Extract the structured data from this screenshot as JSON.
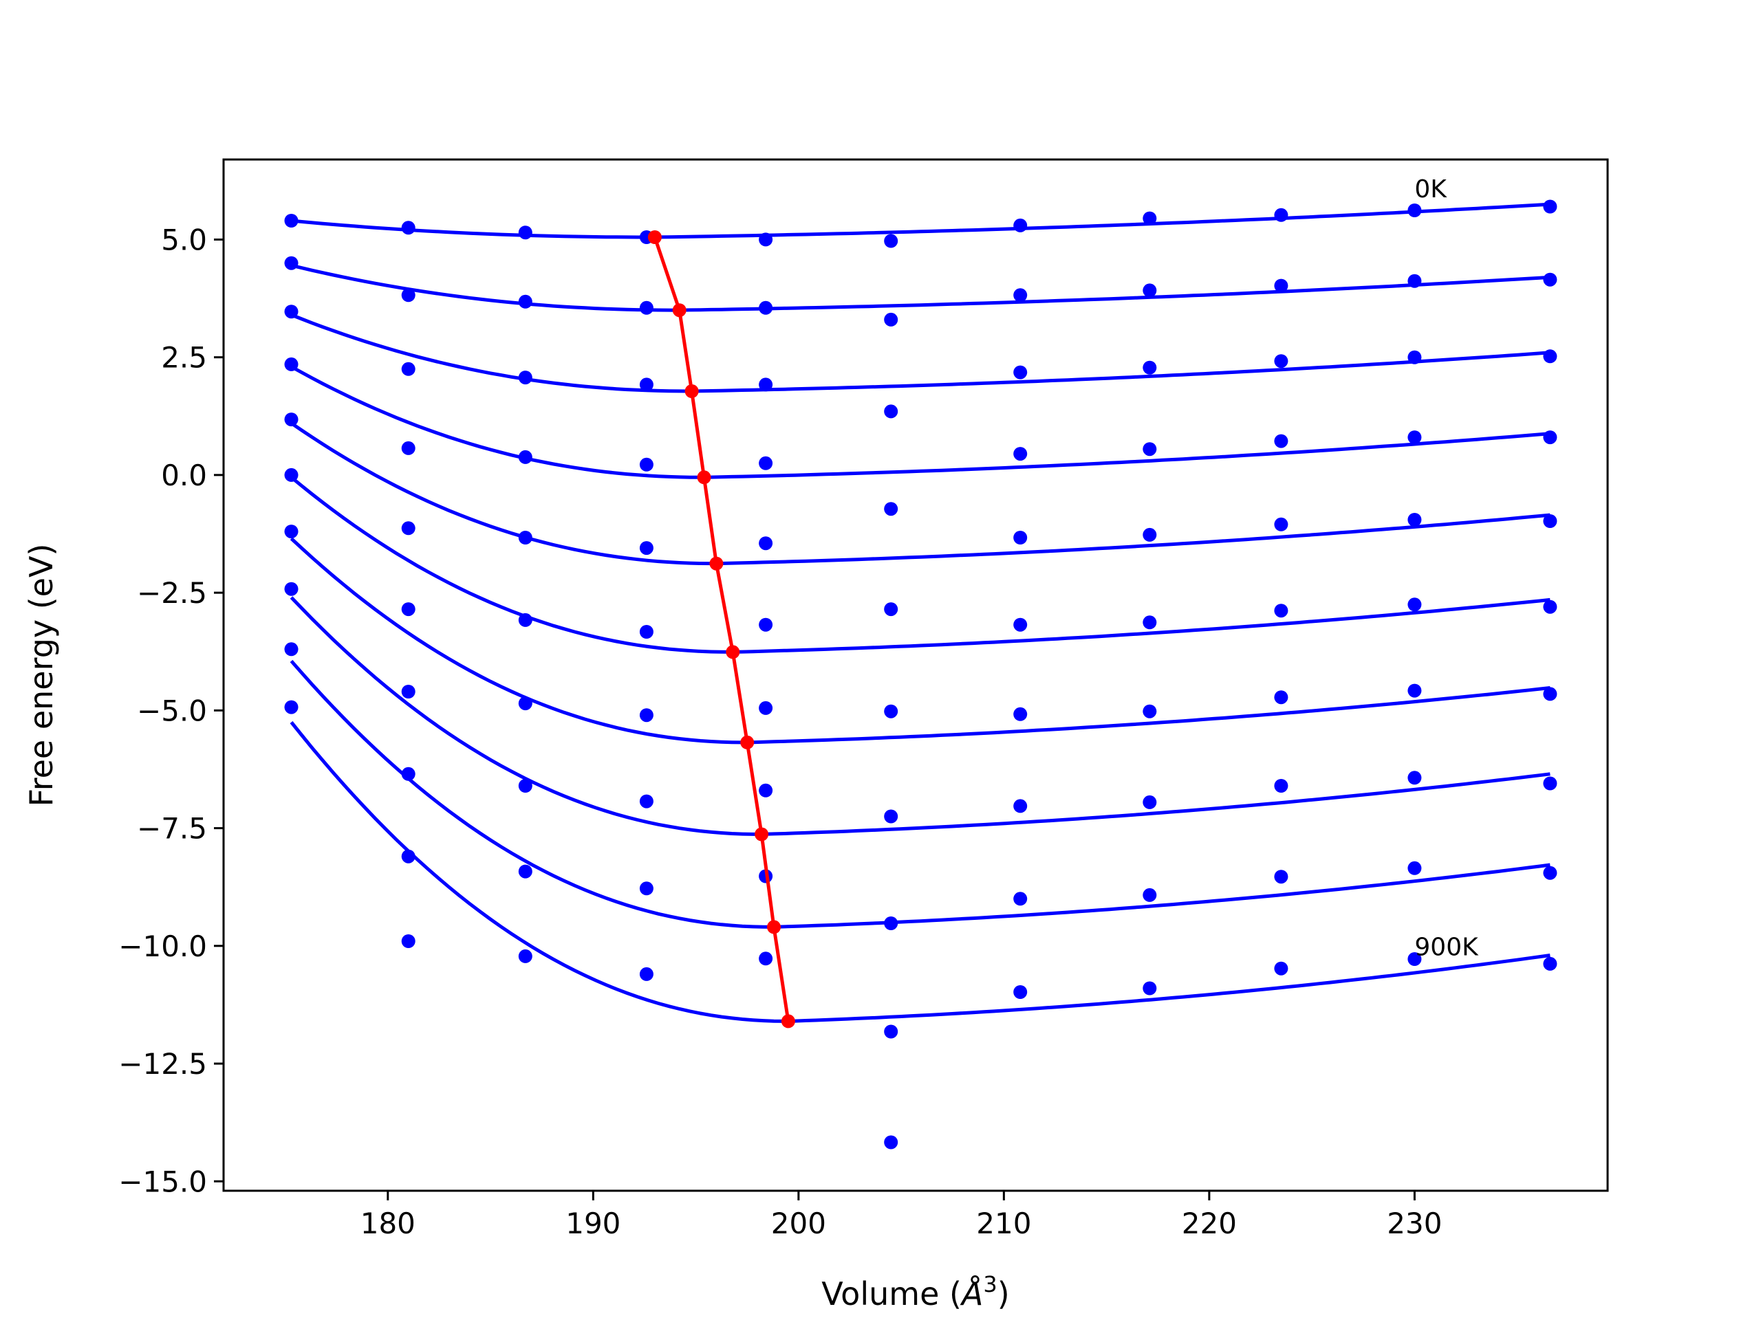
{
  "chart_data": {
    "type": "line",
    "xlabel_main": "Volume (",
    "xlabel_unit": "Å",
    "xlabel_sup": "3",
    "xlabel_end": ")",
    "ylabel": "Free energy (eV)",
    "xlim": [
      172.0,
      239.4
    ],
    "ylim": [
      -15.2,
      6.7
    ],
    "xticks": [
      180,
      190,
      200,
      210,
      220,
      230
    ],
    "xtick_labels": [
      "180",
      "190",
      "200",
      "210",
      "220",
      "230"
    ],
    "yticks": [
      5.0,
      2.5,
      0.0,
      -2.5,
      -5.0,
      -7.5,
      -10.0,
      -12.5,
      -15.0
    ],
    "ytick_labels": [
      "5.0",
      "2.5",
      "0.0",
      "−2.5",
      "−5.0",
      "−7.5",
      "−10.0",
      "−12.5",
      "−15.0"
    ],
    "annotations": [
      {
        "text": "0K",
        "x": 230.0,
        "y": 5.9
      },
      {
        "text": "900K",
        "x": 230.0,
        "y": -10.2
      }
    ],
    "colors": {
      "points": "#0000ff",
      "fit": "#0000ff",
      "minima": "#ff0000"
    },
    "volumes": [
      175.3,
      181.0,
      186.7,
      192.6,
      198.4,
      204.5,
      210.8,
      217.1,
      223.5,
      230.0,
      236.6
    ],
    "series": [
      {
        "values": [
          5.4,
          5.25,
          5.15,
          5.05,
          5.0,
          4.97,
          5.3,
          5.45,
          5.52,
          5.62,
          5.7
        ]
      },
      {
        "values": [
          4.5,
          3.82,
          3.68,
          3.55,
          3.55,
          3.3,
          3.82,
          3.92,
          4.02,
          4.12,
          4.15
        ]
      },
      {
        "values": [
          3.47,
          2.25,
          2.07,
          1.92,
          1.92,
          1.35,
          2.18,
          2.28,
          2.42,
          2.5,
          2.52
        ]
      },
      {
        "values": [
          2.35,
          0.57,
          0.38,
          0.22,
          0.25,
          -0.72,
          0.45,
          0.55,
          0.72,
          0.8,
          0.8
        ]
      },
      {
        "values": [
          1.18,
          -1.13,
          -1.33,
          -1.55,
          -1.45,
          -2.85,
          -1.33,
          -1.27,
          -1.05,
          -0.95,
          -0.98
        ]
      },
      {
        "values": [
          0.0,
          -2.85,
          -3.08,
          -3.33,
          -3.18,
          -5.02,
          -3.18,
          -3.13,
          -2.88,
          -2.75,
          -2.8
        ]
      },
      {
        "values": [
          -1.2,
          -4.6,
          -4.85,
          -5.1,
          -4.95,
          -7.25,
          -5.08,
          -5.02,
          -4.72,
          -4.58,
          -4.65
        ]
      },
      {
        "values": [
          -2.42,
          -6.35,
          -6.6,
          -6.93,
          -6.7,
          -9.52,
          -7.03,
          -6.95,
          -6.6,
          -6.43,
          -6.55
        ]
      },
      {
        "values": [
          -3.7,
          -8.1,
          -8.42,
          -8.78,
          -8.52,
          -11.82,
          -9.0,
          -8.92,
          -8.53,
          -8.35,
          -8.45
        ]
      },
      {
        "values": [
          -4.93,
          -9.9,
          -10.22,
          -10.6,
          -10.27,
          -14.17,
          -10.98,
          -10.9,
          -10.48,
          -10.28,
          -10.38
        ]
      }
    ],
    "fit_curves": [
      {
        "min_x": 193.0,
        "min_y": 5.05,
        "left_end": 5.4,
        "right_end": 5.75
      },
      {
        "min_x": 194.2,
        "min_y": 3.5,
        "left_end": 4.45,
        "right_end": 4.2
      },
      {
        "min_x": 194.8,
        "min_y": 1.78,
        "left_end": 3.4,
        "right_end": 2.6
      },
      {
        "min_x": 195.4,
        "min_y": -0.05,
        "left_end": 2.3,
        "right_end": 0.88
      },
      {
        "min_x": 196.0,
        "min_y": -1.88,
        "left_end": 1.1,
        "right_end": -0.85
      },
      {
        "min_x": 196.8,
        "min_y": -3.76,
        "left_end": -0.05,
        "right_end": -2.65
      },
      {
        "min_x": 197.5,
        "min_y": -5.68,
        "left_end": -1.35,
        "right_end": -4.52
      },
      {
        "min_x": 198.2,
        "min_y": -7.63,
        "left_end": -2.6,
        "right_end": -6.35
      },
      {
        "min_x": 198.8,
        "min_y": -9.6,
        "left_end": -3.95,
        "right_end": -8.28
      },
      {
        "min_x": 199.5,
        "min_y": -11.6,
        "left_end": -5.25,
        "right_end": -10.2
      }
    ],
    "minima_path": {
      "x": [
        193.0,
        194.2,
        194.8,
        195.4,
        196.0,
        196.8,
        197.5,
        198.2,
        198.8,
        199.5
      ],
      "y": [
        5.05,
        3.5,
        1.78,
        -0.05,
        -1.88,
        -3.76,
        -5.68,
        -7.63,
        -9.6,
        -11.6
      ]
    }
  }
}
